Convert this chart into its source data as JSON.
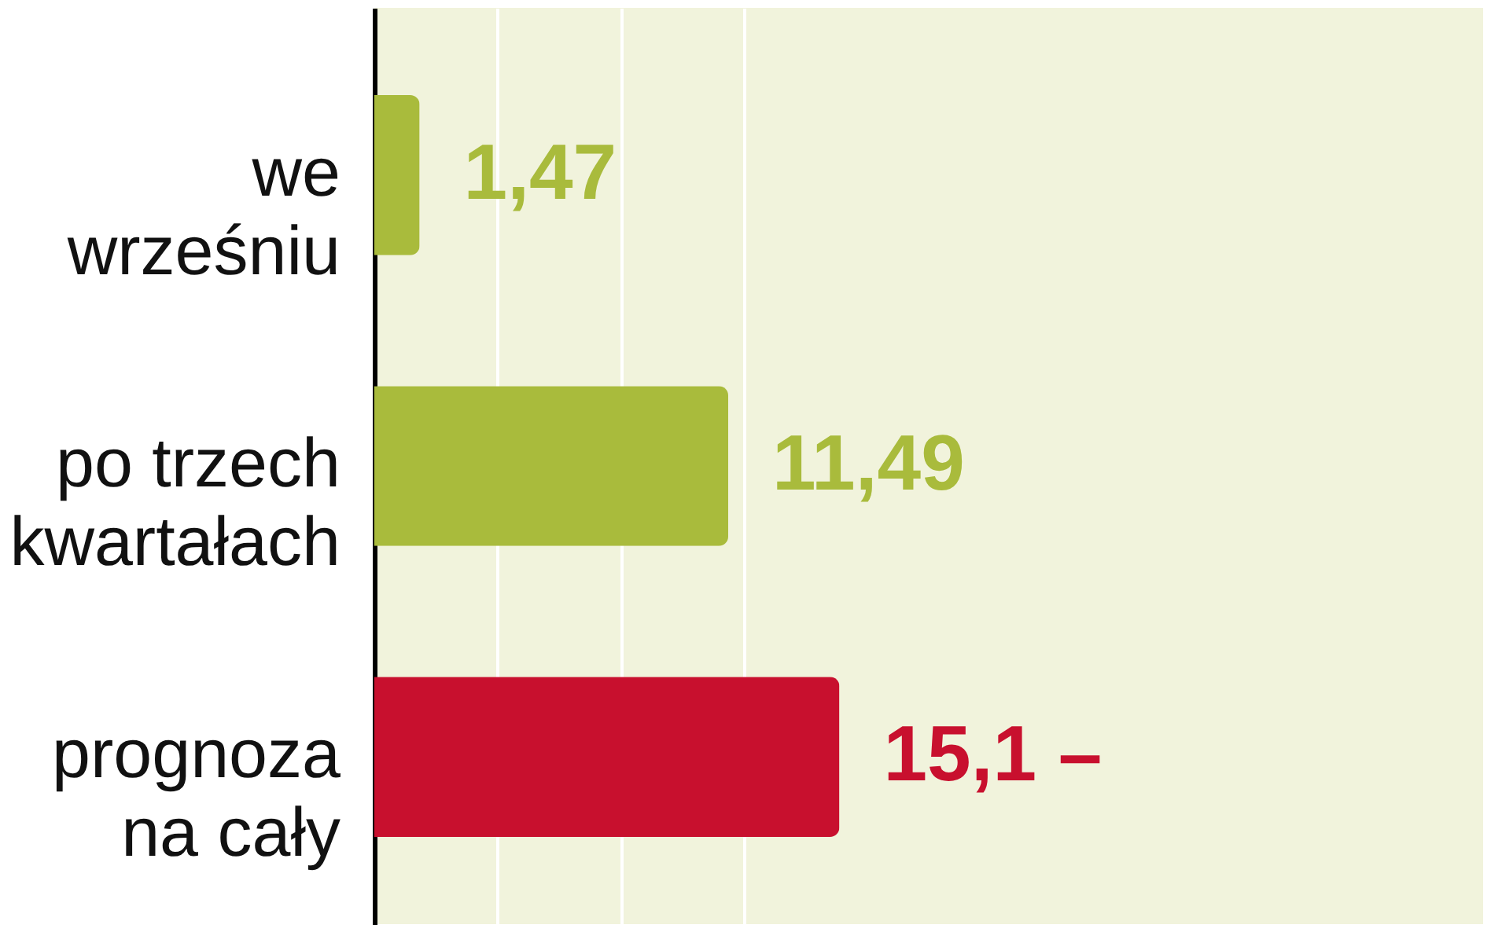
{
  "chart_data": {
    "type": "bar",
    "orientation": "horizontal",
    "categories": [
      "we wrześniu",
      "po trzech kwartałach",
      "prognoza na cały"
    ],
    "values": [
      1.47,
      11.49,
      15.1
    ],
    "colors": [
      "#a9bb3c",
      "#a9bb3c",
      "#c8102e"
    ],
    "value_labels": [
      "1,47",
      "11,49",
      "15,1 –"
    ],
    "xlim": [
      0,
      36
    ],
    "xticks": [
      {
        "value": 4,
        "label": null
      },
      {
        "value": 8,
        "label": null
      },
      {
        "value": 12,
        "label": null
      }
    ],
    "grid": "x",
    "tick_labels": "y"
  }
}
